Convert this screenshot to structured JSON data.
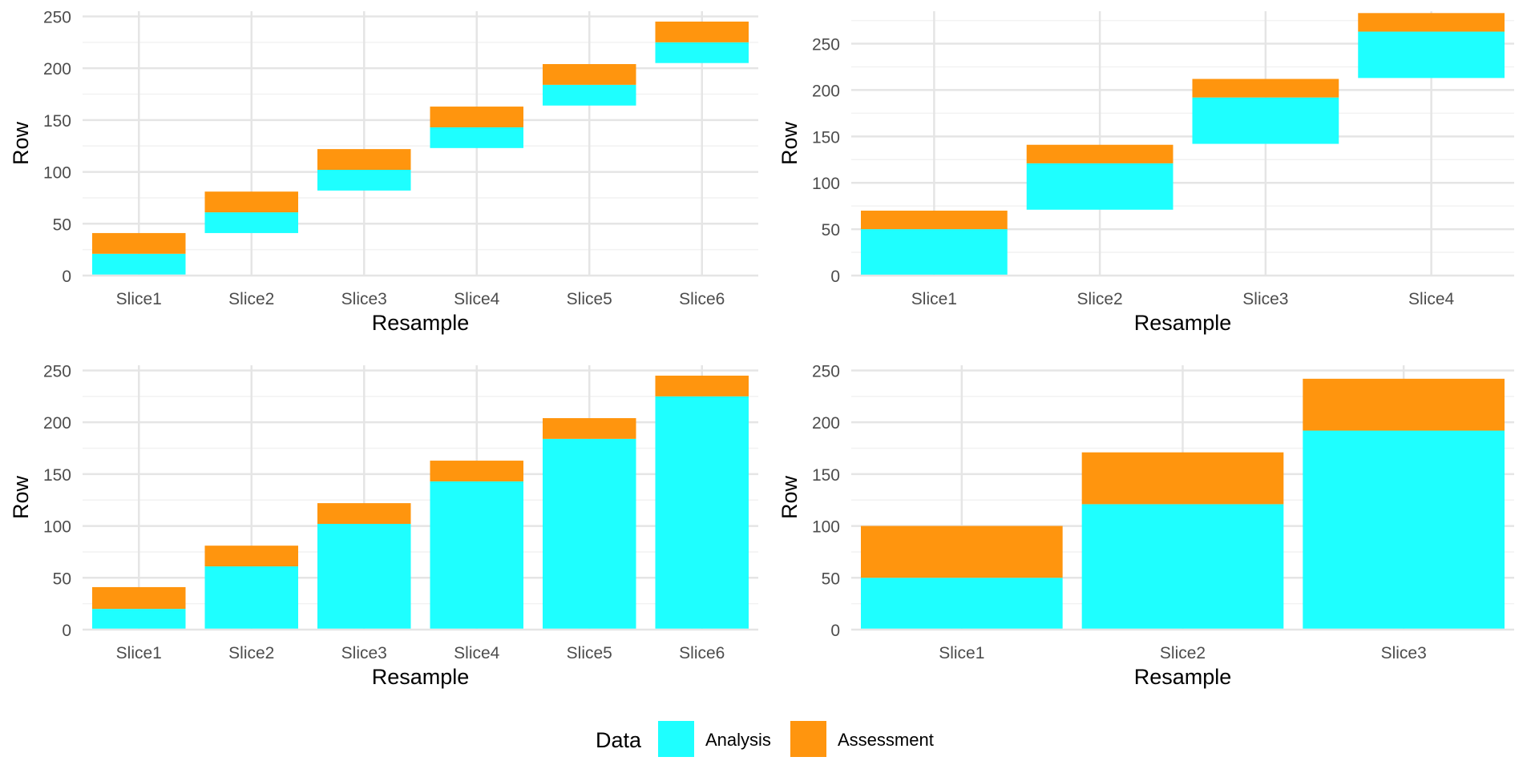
{
  "colors": {
    "analysis": "#1EFFFF",
    "assessment": "#FF950E",
    "grid_major": "#e5e5e5",
    "grid_minor": "#f2f2f2"
  },
  "legend": {
    "title": "Data",
    "items": [
      {
        "label": "Analysis",
        "color_key": "analysis"
      },
      {
        "label": "Assessment",
        "color_key": "assessment"
      }
    ]
  },
  "chart_data": [
    {
      "type": "bar",
      "stacked": true,
      "xlabel": "Resample",
      "ylabel": "Row",
      "ylim": [
        0,
        255
      ],
      "yticks": [
        0,
        50,
        100,
        150,
        200,
        250
      ],
      "grid": true,
      "categories": [
        "Slice1",
        "Slice2",
        "Slice3",
        "Slice4",
        "Slice5",
        "Slice6"
      ],
      "segments": {
        "Analysis": [
          [
            1,
            21
          ],
          [
            41,
            61
          ],
          [
            82,
            102
          ],
          [
            123,
            143
          ],
          [
            164,
            184
          ],
          [
            205,
            225
          ]
        ],
        "Assessment": [
          [
            21,
            41
          ],
          [
            61,
            81
          ],
          [
            102,
            122
          ],
          [
            143,
            163
          ],
          [
            184,
            204
          ],
          [
            225,
            245
          ]
        ]
      }
    },
    {
      "type": "bar",
      "stacked": true,
      "xlabel": "Resample",
      "ylabel": "Row",
      "ylim": [
        0,
        285
      ],
      "yticks": [
        0,
        50,
        100,
        150,
        200,
        250
      ],
      "grid": true,
      "categories": [
        "Slice1",
        "Slice2",
        "Slice3",
        "Slice4"
      ],
      "segments": {
        "Analysis": [
          [
            1,
            50
          ],
          [
            71,
            121
          ],
          [
            142,
            192
          ],
          [
            213,
            263
          ]
        ],
        "Assessment": [
          [
            50,
            70
          ],
          [
            121,
            141
          ],
          [
            192,
            212
          ],
          [
            263,
            283
          ]
        ]
      }
    },
    {
      "type": "bar",
      "stacked": true,
      "xlabel": "Resample",
      "ylabel": "Row",
      "ylim": [
        0,
        255
      ],
      "yticks": [
        0,
        50,
        100,
        150,
        200,
        250
      ],
      "grid": true,
      "categories": [
        "Slice1",
        "Slice2",
        "Slice3",
        "Slice4",
        "Slice5",
        "Slice6"
      ],
      "segments": {
        "Analysis": [
          [
            1,
            20
          ],
          [
            1,
            61
          ],
          [
            1,
            102
          ],
          [
            1,
            143
          ],
          [
            1,
            184
          ],
          [
            1,
            225
          ]
        ],
        "Assessment": [
          [
            20,
            41
          ],
          [
            61,
            81
          ],
          [
            102,
            122
          ],
          [
            143,
            163
          ],
          [
            184,
            204
          ],
          [
            225,
            245
          ]
        ]
      }
    },
    {
      "type": "bar",
      "stacked": true,
      "xlabel": "Resample",
      "ylabel": "Row",
      "ylim": [
        0,
        255
      ],
      "yticks": [
        0,
        50,
        100,
        150,
        200,
        250
      ],
      "grid": true,
      "categories": [
        "Slice1",
        "Slice2",
        "Slice3"
      ],
      "segments": {
        "Analysis": [
          [
            1,
            50
          ],
          [
            1,
            121
          ],
          [
            1,
            192
          ]
        ],
        "Assessment": [
          [
            50,
            100
          ],
          [
            121,
            171
          ],
          [
            192,
            242
          ]
        ]
      }
    }
  ]
}
